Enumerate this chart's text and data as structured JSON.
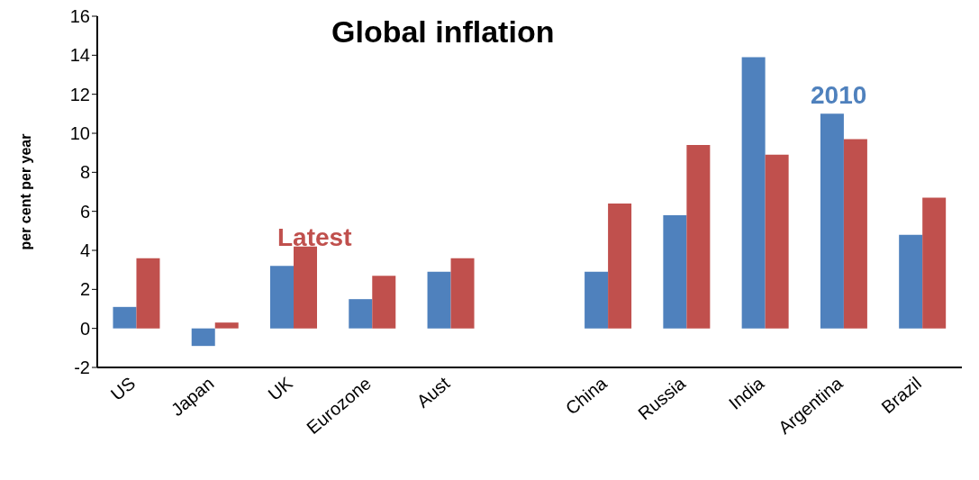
{
  "chart_data": {
    "type": "bar",
    "title": "Global inflation",
    "ylabel": "per cent per year",
    "categories": [
      "US",
      "Japan",
      "UK",
      "Eurozone",
      "Aust",
      null,
      "China",
      "Russia",
      "India",
      "Argentina",
      "Brazil"
    ],
    "series": [
      {
        "name": "2010",
        "color": "#4f81bd",
        "values": [
          1.1,
          -0.9,
          3.2,
          1.5,
          2.9,
          null,
          2.9,
          5.8,
          13.9,
          11.0,
          4.8
        ]
      },
      {
        "name": "Latest",
        "color": "#c0504d",
        "values": [
          3.6,
          0.3,
          4.2,
          2.7,
          3.6,
          null,
          6.4,
          9.4,
          8.9,
          9.7,
          6.7
        ]
      }
    ],
    "ylim": [
      -2,
      16
    ],
    "yticks": [
      -2,
      0,
      2,
      4,
      6,
      8,
      10,
      12,
      14,
      16
    ],
    "grid": false,
    "legend": false
  }
}
